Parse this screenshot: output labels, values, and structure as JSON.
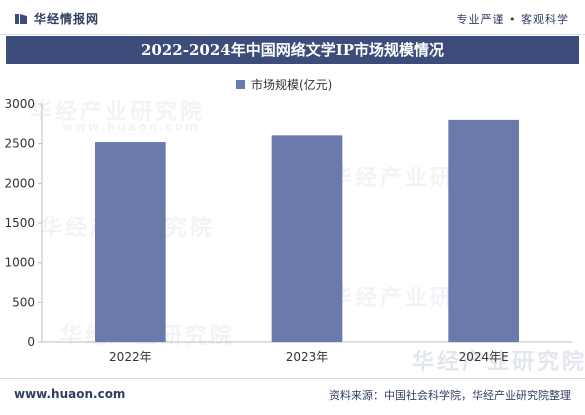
{
  "header": {
    "brand": "华经情报网",
    "tagline": "专业严谨 • 客观科学"
  },
  "watermark": {
    "text": "华经产业研究院",
    "url": "www.huaon.com"
  },
  "chart_data": {
    "type": "bar",
    "title": "2022-2024年中国网络文学IP市场规模情况",
    "categories": [
      "2022年",
      "2023年",
      "2024年E"
    ],
    "series": [
      {
        "name": "市场规模(亿元)",
        "values": [
          2520,
          2605,
          2800
        ]
      }
    ],
    "ylim": [
      0,
      3000
    ],
    "yticks": [
      "0",
      "500",
      "1000",
      "1500",
      "2000",
      "2500",
      "3000"
    ],
    "bar_color": "#6a7bab",
    "legend_position": "top-center",
    "grid": false
  },
  "footer": {
    "url": "www.huaon.com",
    "source": "资料来源：中国社会科学院，华经产业研究院整理"
  }
}
